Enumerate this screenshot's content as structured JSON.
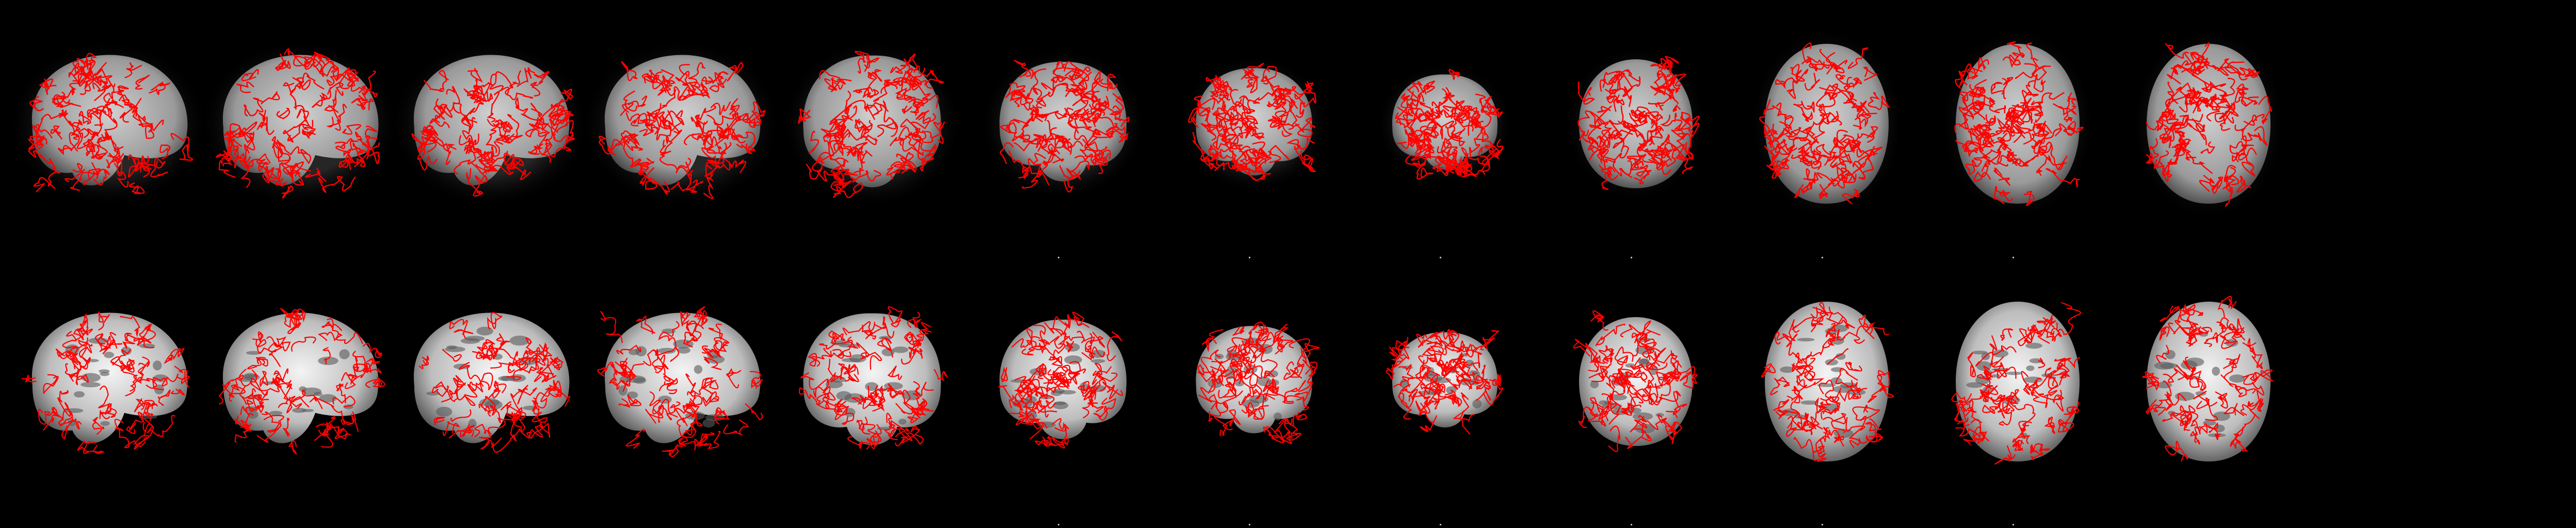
{
  "background": "#000000",
  "overlay_color": "#ff0000",
  "tissue_color_top": "#b4b4b4",
  "tissue_color_bottom": "#e8e8e8",
  "rows": [
    {
      "name": "epi-registration-row",
      "panels": [
        {
          "view": "sagittal"
        },
        {
          "view": "sagittal"
        },
        {
          "view": "sagittal"
        },
        {
          "view": "sagittal"
        },
        {
          "view": "coronal"
        },
        {
          "view": "coronal"
        },
        {
          "view": "coronal"
        },
        {
          "view": "coronal"
        },
        {
          "view": "axial"
        },
        {
          "view": "axial"
        },
        {
          "view": "axial"
        },
        {
          "view": "axial"
        }
      ]
    },
    {
      "name": "anatomical-registration-row",
      "panels": [
        {
          "view": "sagittal"
        },
        {
          "view": "sagittal"
        },
        {
          "view": "sagittal"
        },
        {
          "view": "sagittal"
        },
        {
          "view": "coronal"
        },
        {
          "view": "coronal"
        },
        {
          "view": "coronal"
        },
        {
          "view": "coronal"
        },
        {
          "view": "axial"
        },
        {
          "view": "axial"
        },
        {
          "view": "axial"
        },
        {
          "view": "axial"
        }
      ]
    }
  ]
}
